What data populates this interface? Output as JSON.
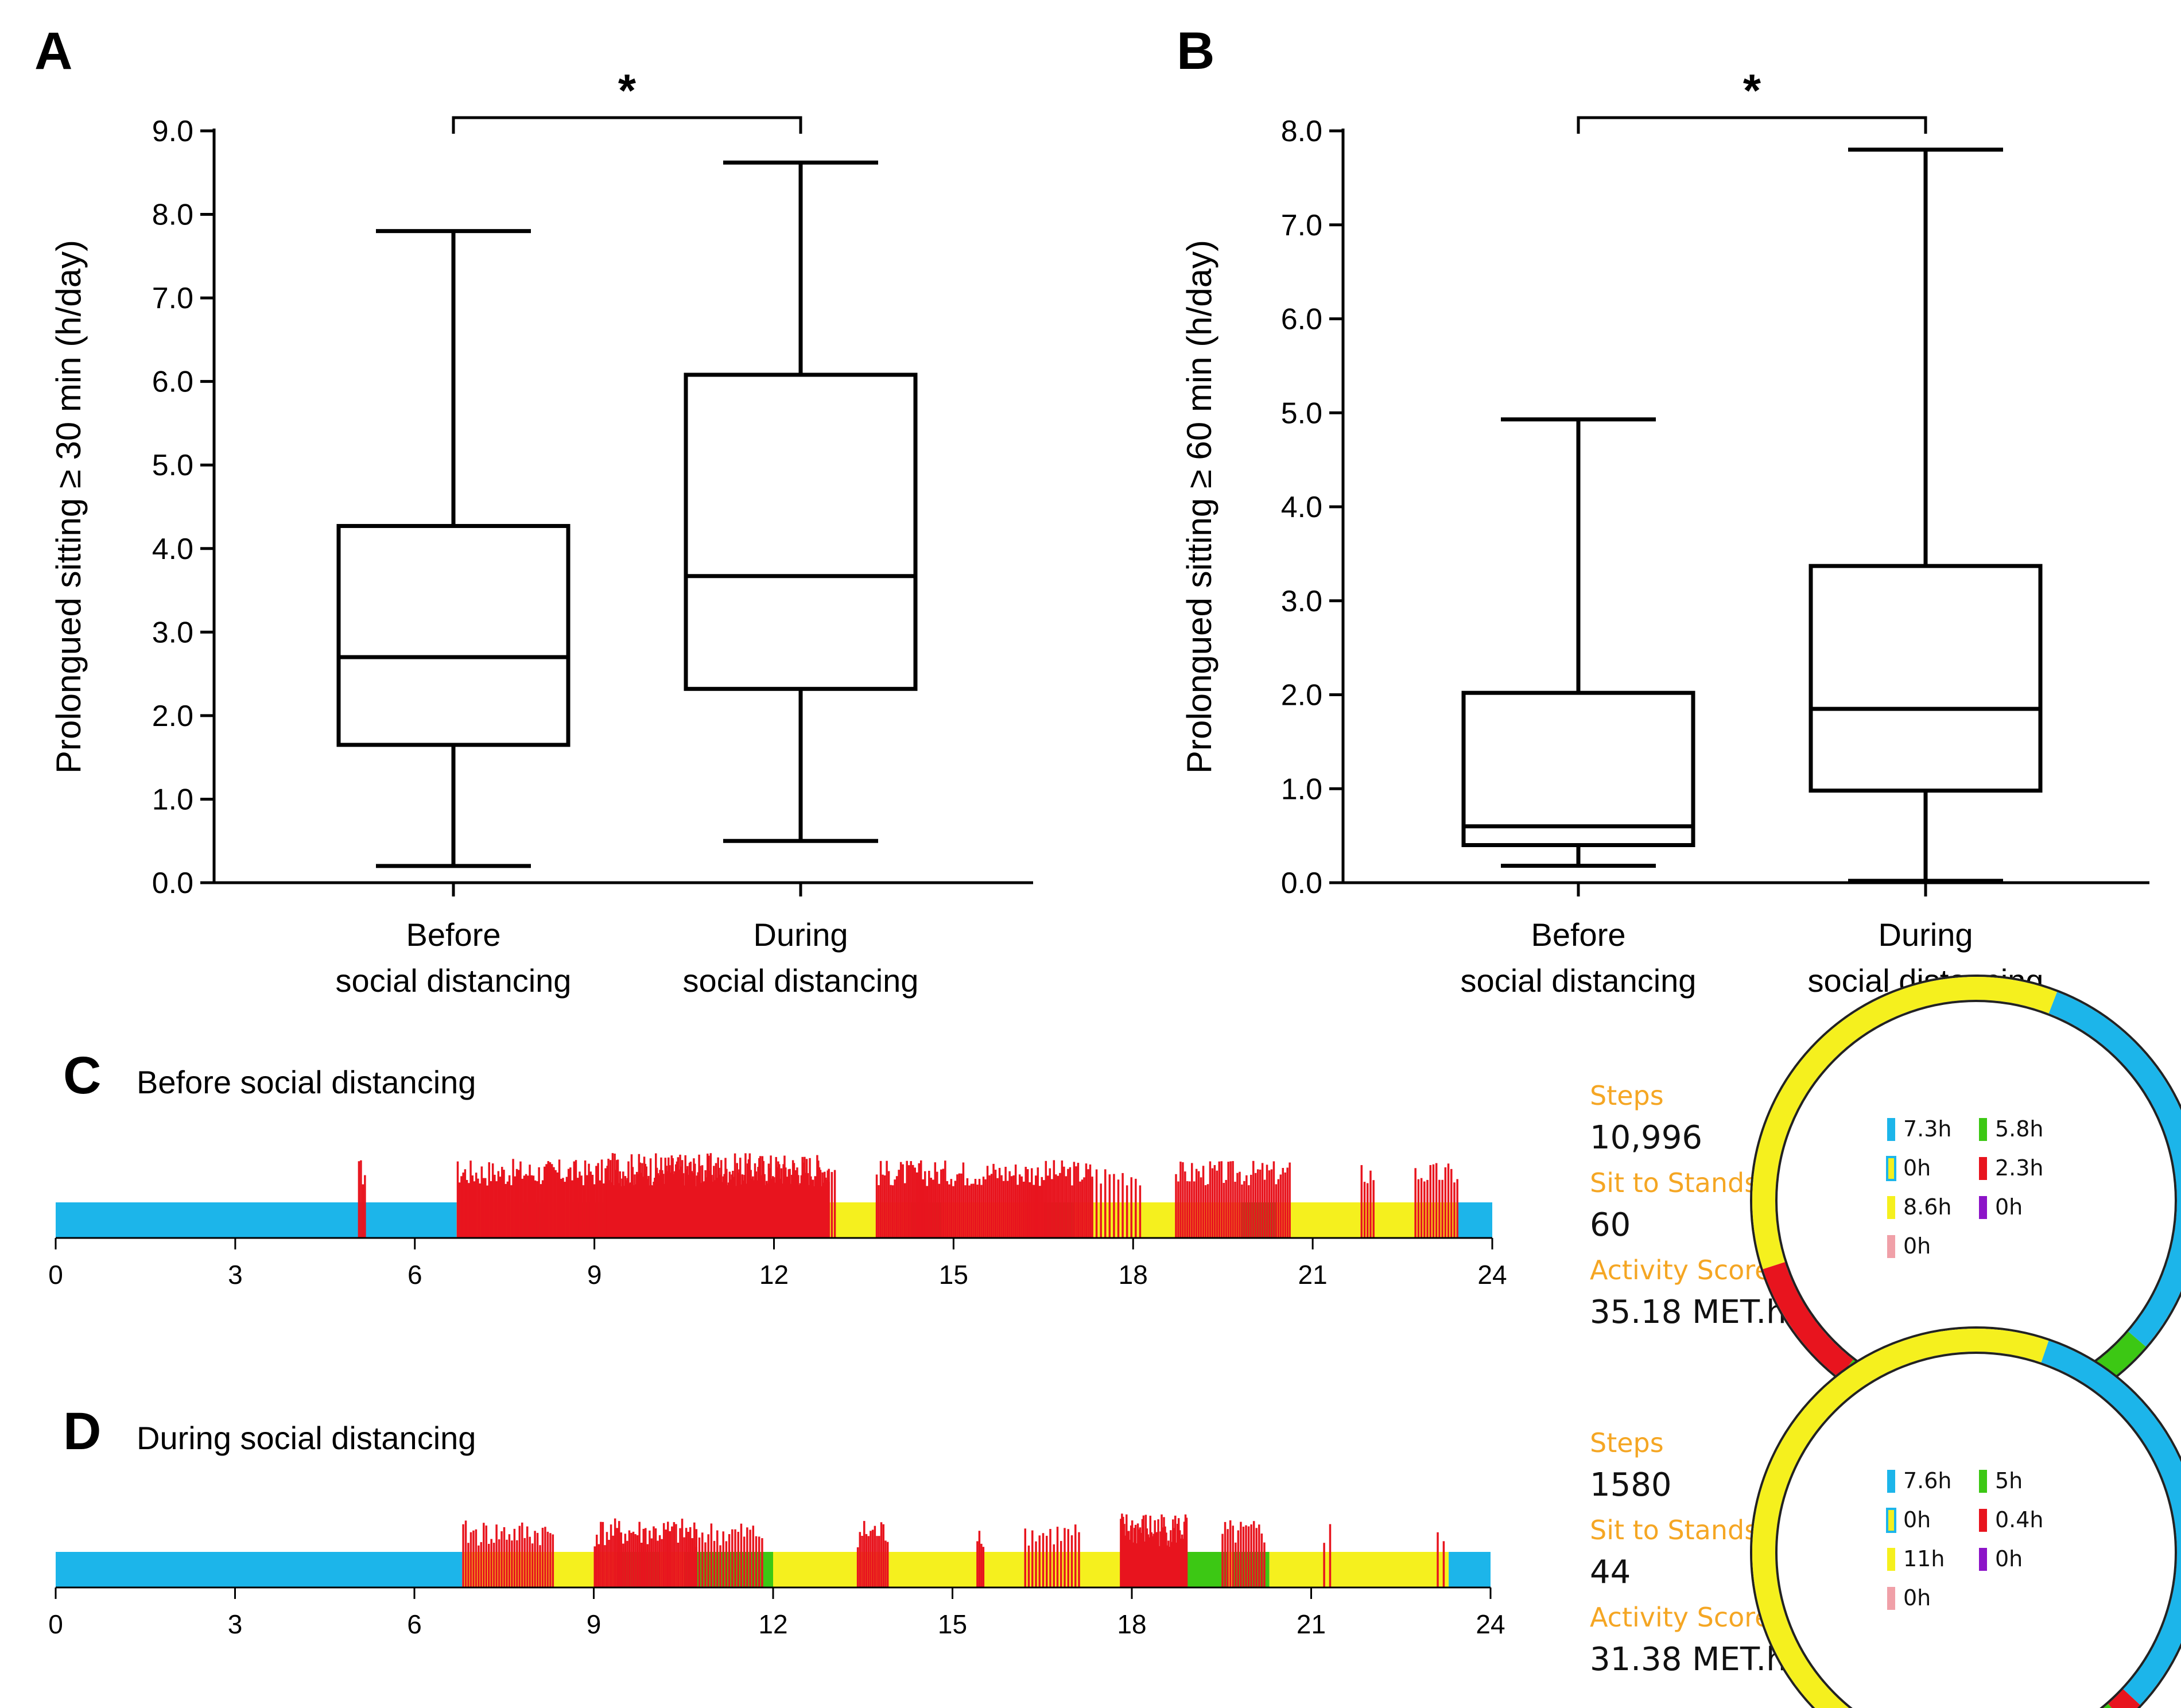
{
  "chart_data": [
    {
      "type": "box",
      "panel": "A",
      "title": "",
      "significance": "*",
      "ylabel": "Prolongued sitting ≥ 30 min (h/day)",
      "ylim": [
        0,
        9
      ],
      "yticks": [
        "0.0",
        "1.0",
        "2.0",
        "3.0",
        "4.0",
        "5.0",
        "6.0",
        "7.0",
        "8.0",
        "9.0"
      ],
      "categories": [
        "Before\nsocial distancing",
        "During\nsocial distancing"
      ],
      "boxes": [
        {
          "name": "Before social distancing",
          "min": 0.2,
          "q1": 1.65,
          "median": 2.7,
          "q3": 4.27,
          "max": 7.8
        },
        {
          "name": "During social distancing",
          "min": 0.5,
          "q1": 2.32,
          "median": 3.67,
          "q3": 6.08,
          "max": 8.62
        }
      ]
    },
    {
      "type": "box",
      "panel": "B",
      "title": "",
      "significance": "*",
      "ylabel": "Prolongued sitting ≥ 60 min (h/day)",
      "ylim": [
        0,
        8
      ],
      "yticks": [
        "0.0",
        "1.0",
        "2.0",
        "3.0",
        "4.0",
        "5.0",
        "6.0",
        "7.0",
        "8.0"
      ],
      "categories": [
        "Before\nsocial distancing",
        "During\nsocial distancing"
      ],
      "boxes": [
        {
          "name": "Before social distancing",
          "min": 0.18,
          "q1": 0.4,
          "median": 0.6,
          "q3": 2.02,
          "max": 4.93
        },
        {
          "name": "During social distancing",
          "min": 0.02,
          "q1": 0.98,
          "median": 1.85,
          "q3": 3.37,
          "max": 7.8
        }
      ]
    },
    {
      "type": "timeline",
      "panel": "C",
      "title": "Before social distancing",
      "xlim": [
        0,
        24
      ],
      "xticks": [
        "0",
        "3",
        "6",
        "9",
        "12",
        "15",
        "18",
        "21",
        "24"
      ],
      "segments": [
        {
          "start": 0,
          "end": 6.7,
          "state": "sleep"
        },
        {
          "start": 6.7,
          "end": 7.8,
          "state": "sit"
        },
        {
          "start": 7.8,
          "end": 8.2,
          "state": "stand"
        },
        {
          "start": 8.2,
          "end": 8.6,
          "state": "sit"
        },
        {
          "start": 8.6,
          "end": 9.2,
          "state": "stand"
        },
        {
          "start": 9.2,
          "end": 14.3,
          "state": "sit"
        },
        {
          "start": 14.3,
          "end": 14.8,
          "state": "stand"
        },
        {
          "start": 14.8,
          "end": 16.5,
          "state": "sit"
        },
        {
          "start": 16.5,
          "end": 17.0,
          "state": "stand"
        },
        {
          "start": 17.0,
          "end": 19.8,
          "state": "sit"
        },
        {
          "start": 19.8,
          "end": 20.4,
          "state": "stand"
        },
        {
          "start": 20.4,
          "end": 23.4,
          "state": "sit"
        },
        {
          "start": 23.4,
          "end": 24,
          "state": "sleep"
        }
      ],
      "step_clusters": [
        {
          "start": 5.05,
          "end": 5.15,
          "density": 0.6
        },
        {
          "start": 6.7,
          "end": 9.2,
          "density": 0.55
        },
        {
          "start": 9.2,
          "end": 12.9,
          "density": 0.95
        },
        {
          "start": 12.9,
          "end": 13.0,
          "density": 0.5
        },
        {
          "start": 13.7,
          "end": 17.3,
          "density": 0.5
        },
        {
          "start": 17.3,
          "end": 18.1,
          "density": 0.25
        },
        {
          "start": 18.7,
          "end": 20.6,
          "density": 0.45
        },
        {
          "start": 21.8,
          "end": 22.0,
          "density": 0.4
        },
        {
          "start": 22.7,
          "end": 23.4,
          "density": 0.35
        }
      ],
      "stats": {
        "steps_label": "Steps",
        "steps": "10,996",
        "sts_label": "Sit to Stands",
        "sts": "60",
        "score_label": "Activity Score",
        "score": "35.18 MET.h"
      },
      "donut": [
        {
          "name": "sleep",
          "hours": 7.3,
          "color": "#1cb5ea"
        },
        {
          "name": "stand",
          "hours": 5.8,
          "color": "#3cc814"
        },
        {
          "name": "other",
          "hours": 0.0,
          "color": "#ffffff"
        },
        {
          "name": "step",
          "hours": 2.3,
          "color": "#e8141e"
        },
        {
          "name": "sit",
          "hours": 8.6,
          "color": "#f5f01e"
        },
        {
          "name": "cycle",
          "hours": 0.0,
          "color": "#8c14c8"
        },
        {
          "name": "lie",
          "hours": 0.0,
          "color": "#f0a0a8"
        }
      ],
      "legend": {
        "sleep": "7.3h",
        "stand": "5.8h",
        "other": "0h",
        "step": "2.3h",
        "sit": "8.6h",
        "cycle": "0h",
        "lie": "0h"
      }
    },
    {
      "type": "timeline",
      "panel": "D",
      "title": "During social distancing",
      "xlim": [
        0,
        24
      ],
      "xticks": [
        "0",
        "3",
        "6",
        "9",
        "12",
        "15",
        "18",
        "21",
        "24"
      ],
      "segments": [
        {
          "start": 0,
          "end": 6.8,
          "state": "sleep"
        },
        {
          "start": 6.8,
          "end": 9.4,
          "state": "sit"
        },
        {
          "start": 9.4,
          "end": 10.1,
          "state": "stand"
        },
        {
          "start": 10.1,
          "end": 10.5,
          "state": "sit"
        },
        {
          "start": 10.5,
          "end": 12.0,
          "state": "stand"
        },
        {
          "start": 12.0,
          "end": 18.2,
          "state": "sit"
        },
        {
          "start": 18.2,
          "end": 19.6,
          "state": "stand"
        },
        {
          "start": 19.6,
          "end": 19.7,
          "state": "sit"
        },
        {
          "start": 19.7,
          "end": 20.3,
          "state": "stand"
        },
        {
          "start": 20.3,
          "end": 23.3,
          "state": "sit"
        },
        {
          "start": 23.3,
          "end": 24,
          "state": "sleep"
        }
      ],
      "step_clusters": [
        {
          "start": 6.8,
          "end": 8.3,
          "density": 0.4
        },
        {
          "start": 9.0,
          "end": 10.7,
          "density": 0.5
        },
        {
          "start": 10.7,
          "end": 11.8,
          "density": 0.35
        },
        {
          "start": 13.4,
          "end": 13.9,
          "density": 0.5
        },
        {
          "start": 15.4,
          "end": 15.5,
          "density": 0.6
        },
        {
          "start": 16.2,
          "end": 17.1,
          "density": 0.3
        },
        {
          "start": 17.8,
          "end": 18.9,
          "density": 0.9
        },
        {
          "start": 19.5,
          "end": 20.2,
          "density": 0.4
        },
        {
          "start": 21.2,
          "end": 21.3,
          "density": 0.4
        },
        {
          "start": 23.1,
          "end": 23.2,
          "density": 0.3
        }
      ],
      "stats": {
        "steps_label": "Steps",
        "steps": "1580",
        "sts_label": "Sit to Stands",
        "sts": "44",
        "score_label": "Activity Score",
        "score": "31.38 MET.h"
      },
      "donut": [
        {
          "name": "sleep",
          "hours": 7.6,
          "color": "#1cb5ea"
        },
        {
          "name": "step",
          "hours": 0.4,
          "color": "#e8141e"
        },
        {
          "name": "stand",
          "hours": 5.0,
          "color": "#3cc814"
        },
        {
          "name": "sit",
          "hours": 11.0,
          "color": "#f5f01e"
        }
      ],
      "legend": {
        "sleep": "7.6h",
        "stand": "5h",
        "other": "0h",
        "step": "0.4h",
        "sit": "11h",
        "cycle": "0h",
        "lie": "0h"
      }
    }
  ]
}
